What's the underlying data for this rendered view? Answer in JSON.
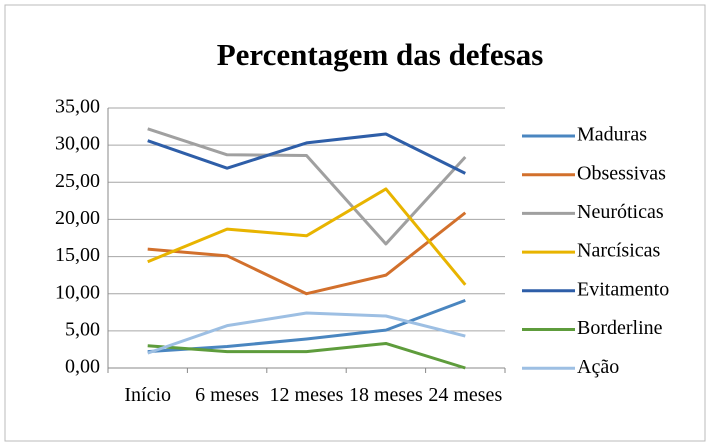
{
  "chart_data": {
    "type": "line",
    "title": "Percentagem das defesas",
    "categories": [
      "Início",
      "6 meses",
      "12 meses",
      "18 meses",
      "24 meses"
    ],
    "series": [
      {
        "name": "Maduras",
        "color": "#4a86c0",
        "values": [
          2.2,
          2.9,
          3.9,
          5.1,
          9.1
        ]
      },
      {
        "name": "Obsessivas",
        "color": "#d2702c",
        "values": [
          16.0,
          15.1,
          10.0,
          12.5,
          20.9
        ]
      },
      {
        "name": "Neuróticas",
        "color": "#a0a0a0",
        "values": [
          32.2,
          28.7,
          28.6,
          16.7,
          28.4
        ]
      },
      {
        "name": "Narcísicas",
        "color": "#e8b400",
        "values": [
          14.3,
          18.7,
          17.8,
          24.1,
          11.2
        ]
      },
      {
        "name": "Evitamento",
        "color": "#2e5ea8",
        "values": [
          30.6,
          26.9,
          30.3,
          31.5,
          26.2
        ]
      },
      {
        "name": "Borderline",
        "color": "#5e9c3c",
        "values": [
          3.0,
          2.2,
          2.2,
          3.3,
          0.0
        ]
      },
      {
        "name": "Ação",
        "color": "#9dbfe3",
        "values": [
          2.0,
          5.7,
          7.4,
          7.0,
          4.3
        ]
      }
    ],
    "ylim": [
      0,
      35
    ],
    "yticks": [
      {
        "value": 0,
        "label": "0,00"
      },
      {
        "value": 5,
        "label": "5,00"
      },
      {
        "value": 10,
        "label": "10,00"
      },
      {
        "value": 15,
        "label": "15,00"
      },
      {
        "value": 20,
        "label": "20,00"
      },
      {
        "value": 25,
        "label": "25,00"
      },
      {
        "value": 30,
        "label": "30,00"
      },
      {
        "value": 35,
        "label": "35,00"
      }
    ],
    "grid": true,
    "legend": "right"
  }
}
